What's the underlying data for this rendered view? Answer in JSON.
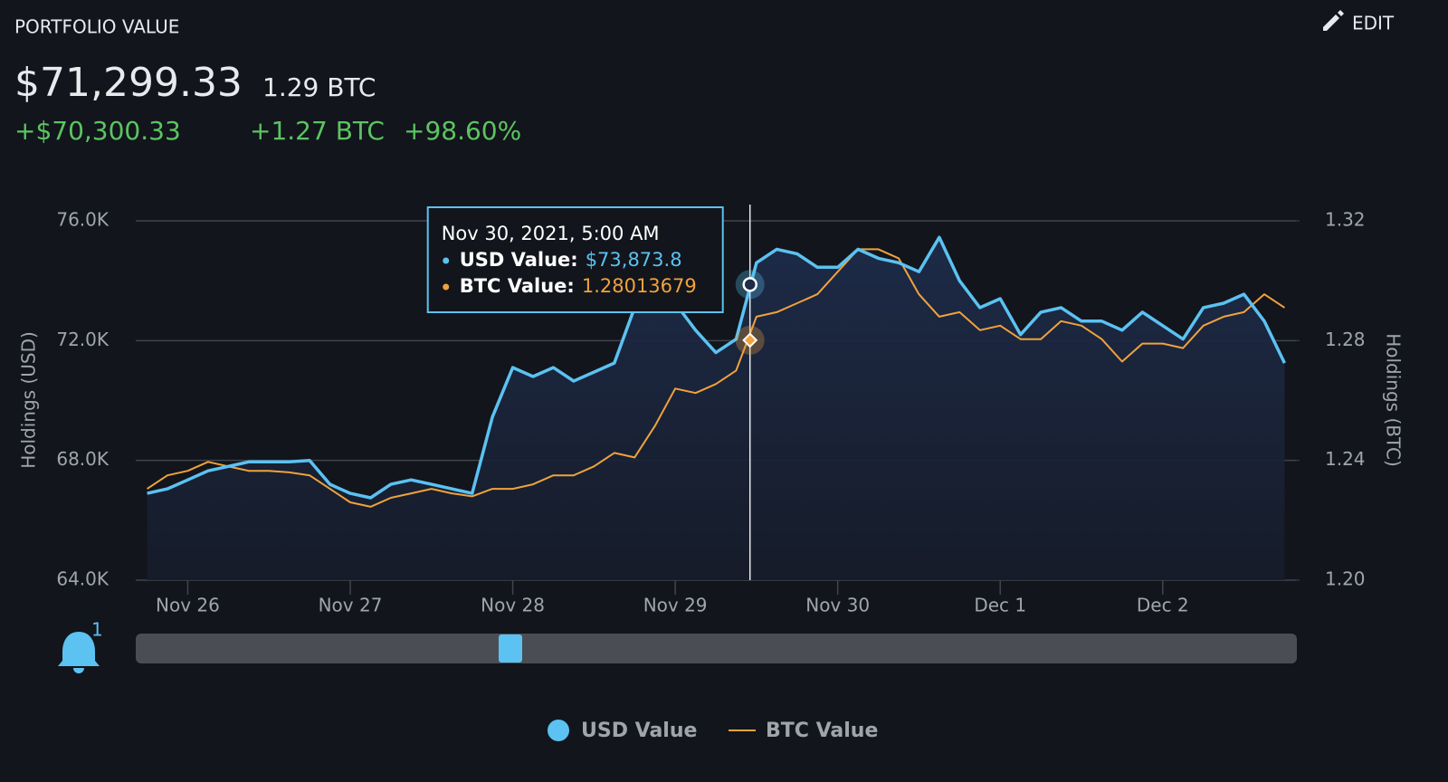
{
  "header": {
    "title": "PORTFOLIO VALUE",
    "edit": "EDIT",
    "usd_total": "$71,299.33",
    "btc_total": "1.29 BTC",
    "usd_change": "+$70,300.33",
    "btc_change": "+1.27 BTC",
    "pct_change": "+98.60%",
    "alert_count": "1"
  },
  "chart_data": {
    "type": "line",
    "y_label": "Holdings (USD)",
    "y2_label": "Holdings (BTC)",
    "x": [
      -0.25,
      -0.125,
      0,
      0.125,
      0.25,
      0.375,
      0.5,
      0.625,
      0.75,
      0.875,
      1,
      1.125,
      1.25,
      1.375,
      1.5,
      1.625,
      1.75,
      1.875,
      2,
      2.125,
      2.25,
      2.375,
      2.5,
      2.625,
      2.75,
      2.875,
      3,
      3.125,
      3.25,
      3.375,
      3.5,
      3.625,
      3.75,
      3.875,
      4,
      4.125,
      4.25,
      4.375,
      4.5,
      4.625,
      4.75,
      4.875,
      5,
      5.125,
      5.25,
      5.375,
      5.5,
      5.625,
      5.75,
      5.875,
      6,
      6.125,
      6.25,
      6.375,
      6.5,
      6.625,
      6.75
    ],
    "xlim": [
      -0.32,
      6.82
    ],
    "xticks": [
      {
        "value": 0,
        "label": "Nov 26"
      },
      {
        "value": 1,
        "label": "Nov 27"
      },
      {
        "value": 2,
        "label": "Nov 28"
      },
      {
        "value": 3,
        "label": "Nov 29"
      },
      {
        "value": 4,
        "label": "Nov 30"
      },
      {
        "value": 5,
        "label": "Dec 1"
      },
      {
        "value": 6,
        "label": "Dec 2"
      }
    ],
    "ylim": [
      64000,
      76000
    ],
    "yticks": [
      {
        "value": 64000,
        "label": "64.0K"
      },
      {
        "value": 68000,
        "label": "68.0K"
      },
      {
        "value": 72000,
        "label": "72.0K"
      },
      {
        "value": 76000,
        "label": "76.0K"
      }
    ],
    "y2lim": [
      1.2,
      1.32
    ],
    "y2ticks": [
      {
        "value": 1.2,
        "label": "1.20"
      },
      1.24,
      1.28,
      1.32
    ],
    "grid": true,
    "series": [
      {
        "name": "USD Value",
        "color": "#5bc2f2",
        "values": [
          66900,
          67050,
          67350,
          67650,
          67800,
          67950,
          67950,
          67950,
          68000,
          67200,
          66900,
          66750,
          67200,
          67350,
          67200,
          67050,
          66900,
          69450,
          71100,
          70800,
          71100,
          70650,
          70950,
          71250,
          73100,
          73400,
          73250,
          72350,
          71600,
          72050,
          74600,
          75050,
          74900,
          74450,
          74450,
          75050,
          74750,
          74600,
          74300,
          75450,
          74000,
          73100,
          73400,
          72200,
          72950,
          73100,
          72650,
          72650,
          72350,
          72950,
          72500,
          72050,
          73100,
          73250,
          73550,
          72650,
          71250
        ]
      },
      {
        "name": "BTC Value",
        "color": "#f0a23c",
        "axis": "y2",
        "values": [
          1.2305,
          1.235,
          1.2365,
          1.2395,
          1.238,
          1.2365,
          1.2365,
          1.236,
          1.235,
          1.2305,
          1.226,
          1.2245,
          1.2275,
          1.229,
          1.2305,
          1.229,
          1.228,
          1.2305,
          1.2305,
          1.232,
          1.235,
          1.235,
          1.238,
          1.2425,
          1.241,
          1.2515,
          1.264,
          1.2625,
          1.2655,
          1.27,
          1.288,
          1.2895,
          1.2925,
          1.2955,
          1.303,
          1.3105,
          1.3105,
          1.3075,
          1.2955,
          1.288,
          1.2895,
          1.2835,
          1.285,
          1.2805,
          1.2805,
          1.2865,
          1.285,
          1.2805,
          1.273,
          1.279,
          1.279,
          1.2775,
          1.285,
          1.288,
          1.2895,
          1.2955,
          1.291
        ]
      }
    ],
    "tooltip": {
      "x": 3.46,
      "date": "Nov 30, 2021, 5:00 AM",
      "rows": [
        {
          "label": "USD Value:",
          "value": 73873.8,
          "value_label": "$73,873.8"
        },
        {
          "label": "BTC Value:",
          "value": 1.28013679
        }
      ]
    }
  }
}
